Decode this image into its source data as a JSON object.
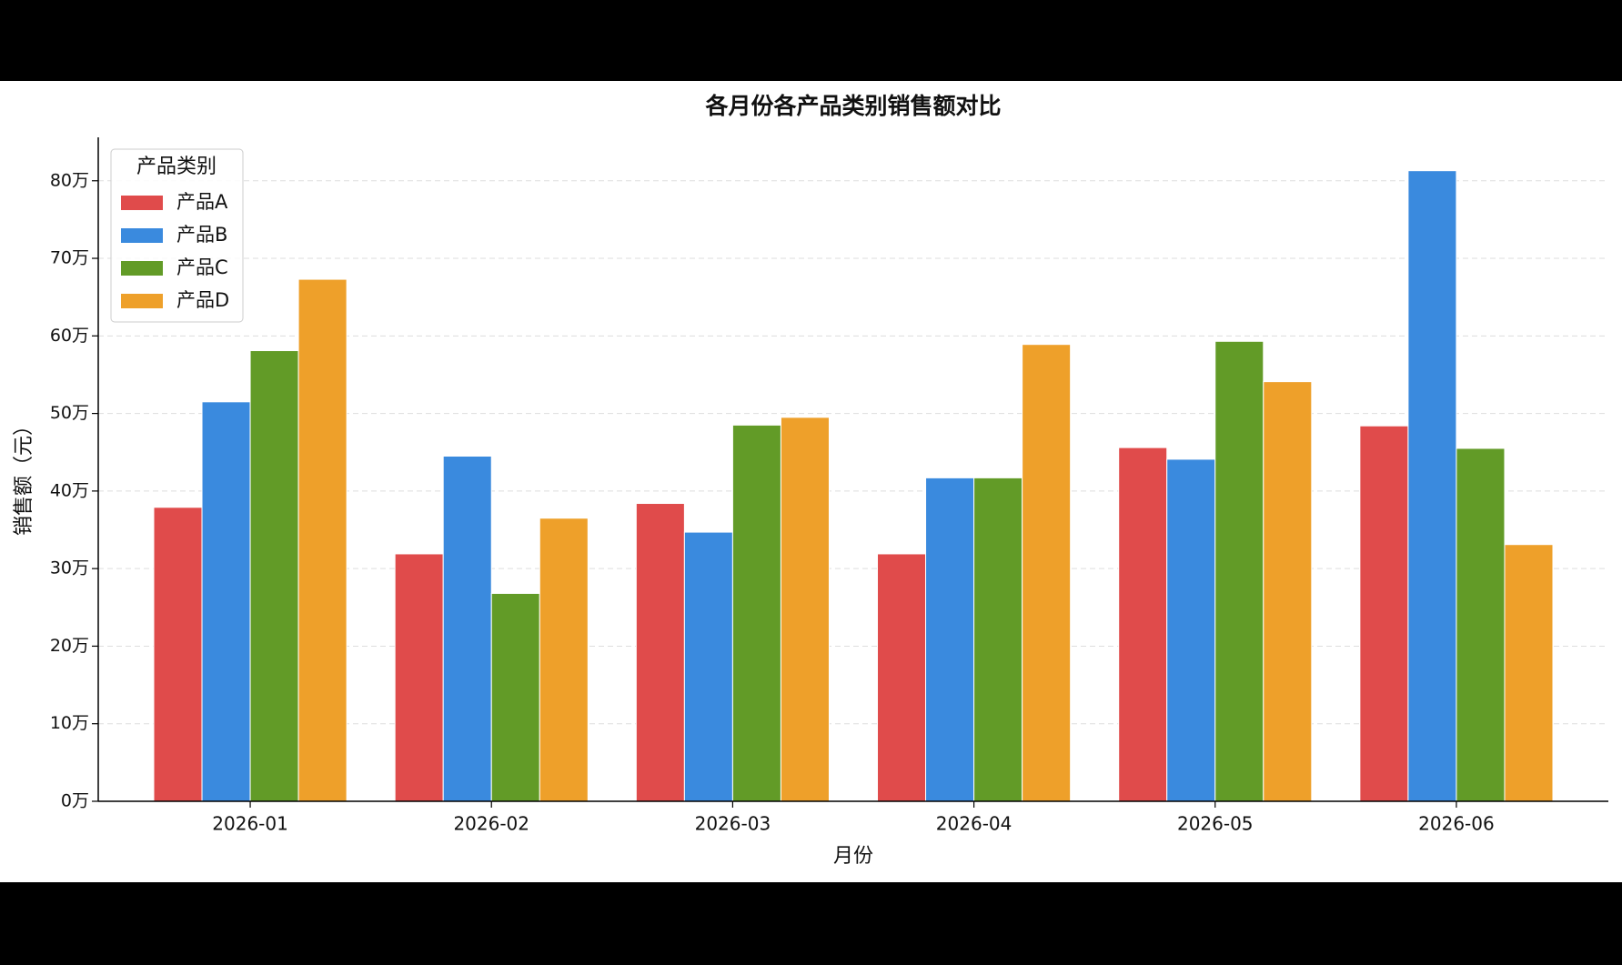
{
  "chart_data": {
    "type": "bar",
    "title": "各月份各产品类别销售额对比",
    "xlabel": "月份",
    "ylabel": "销售额（元）",
    "categories": [
      "2026-01",
      "2026-02",
      "2026-03",
      "2026-04",
      "2026-05",
      "2026-06"
    ],
    "series": [
      {
        "name": "产品A",
        "color": "#e04b4b",
        "values": [
          379000,
          319000,
          384000,
          319000,
          456000,
          484000
        ]
      },
      {
        "name": "产品B",
        "color": "#3a8ade",
        "values": [
          515000,
          445000,
          347000,
          417000,
          441000,
          813000
        ]
      },
      {
        "name": "产品C",
        "color": "#629b27",
        "values": [
          581000,
          268000,
          485000,
          417000,
          593000,
          455000
        ]
      },
      {
        "name": "产品D",
        "color": "#eea02a",
        "values": [
          673000,
          365000,
          495000,
          589000,
          541000,
          331000
        ]
      }
    ],
    "ylim": [
      0,
      856000
    ],
    "yticks": [
      {
        "value": 0,
        "label": "0万"
      },
      {
        "value": 100000,
        "label": "10万"
      },
      {
        "value": 200000,
        "label": "20万"
      },
      {
        "value": 300000,
        "label": "30万"
      },
      {
        "value": 400000,
        "label": "40万"
      },
      {
        "value": 500000,
        "label": "50万"
      },
      {
        "value": 600000,
        "label": "60万"
      },
      {
        "value": 700000,
        "label": "70万"
      },
      {
        "value": 800000,
        "label": "80万"
      }
    ],
    "grid": true,
    "legend_title": "产品类别",
    "legend_loc": "upper left"
  }
}
